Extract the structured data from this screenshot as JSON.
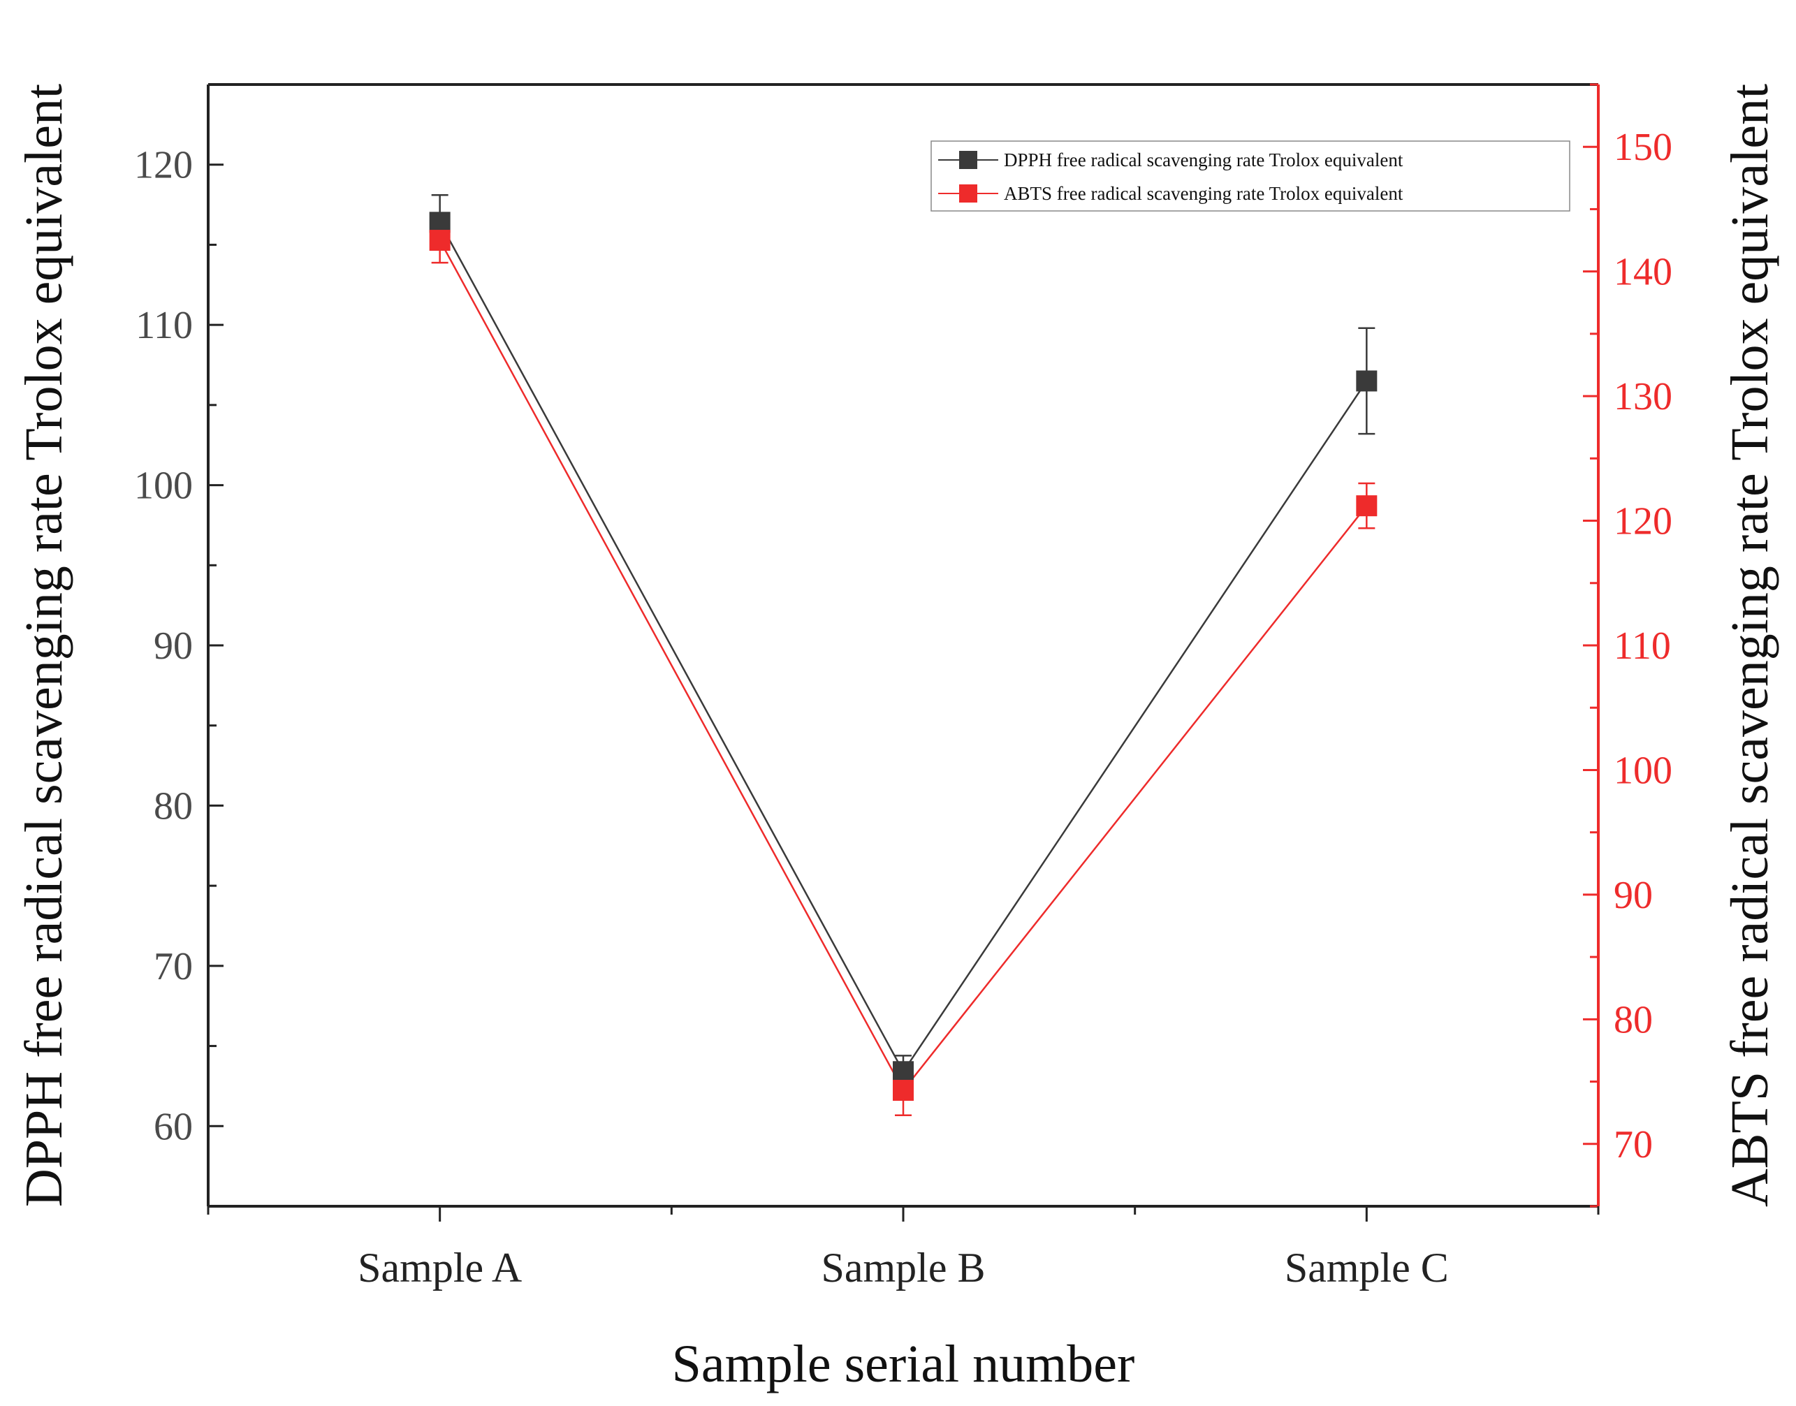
{
  "chart_data": {
    "type": "line",
    "title": "",
    "categories": [
      "Sample A",
      "Sample B",
      "Sample C"
    ],
    "xlabel": "Sample serial number",
    "ylabel_left": "DPPH free radical scavenging rate Trolox equivalent",
    "ylabel_right": "ABTS free radical scavenging rate Trolox equivalent",
    "ylim_left": [
      55,
      125
    ],
    "ylim_right": [
      65,
      155
    ],
    "yticks_left": [
      60,
      70,
      80,
      90,
      100,
      110,
      120
    ],
    "yticks_right": [
      70,
      80,
      90,
      100,
      110,
      120,
      130,
      140,
      150
    ],
    "grid": false,
    "legend_position": "top-right",
    "series": [
      {
        "name": "DPPH free radical scavenging rate Trolox equivalent",
        "axis": "left",
        "color": "#3a3a3a",
        "marker": "square",
        "values": [
          116.4,
          63.4,
          106.5
        ],
        "errors": [
          1.7,
          1.0,
          3.3
        ]
      },
      {
        "name": "ABTS free radical scavenging rate Trolox equivalent",
        "axis": "right",
        "color": "#ee2b2b",
        "marker": "square",
        "values": [
          142.5,
          74.3,
          121.2
        ],
        "errors": [
          1.8,
          2.0,
          1.8
        ]
      }
    ]
  }
}
